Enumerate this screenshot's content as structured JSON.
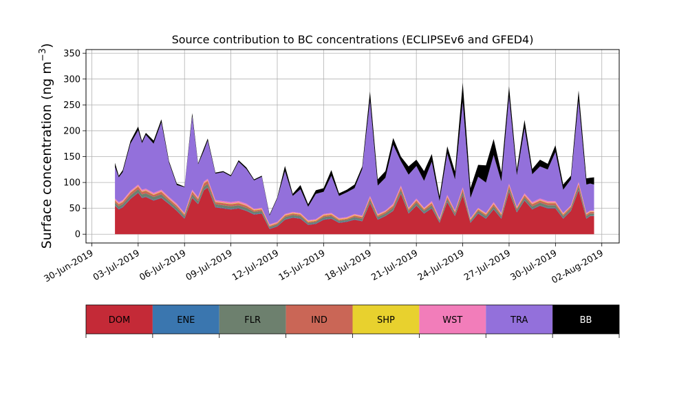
{
  "chart_data": {
    "type": "area",
    "title": "Source contribution to BC concentrations (ECLIPSEv6 and GFED4)",
    "ylabel_main": "Surface concentration (ng m",
    "ylabel_sup": "−3",
    "ylabel_close": ")",
    "xlabel": "",
    "stacked": true,
    "grid": true,
    "ylim": [
      -17,
      357
    ],
    "xlim": [
      "2019-06-29T15:00",
      "2019-08-03T03:00"
    ],
    "yticks": [
      0,
      50,
      100,
      150,
      200,
      250,
      300,
      350
    ],
    "xticks": [
      "2019-06-30",
      "2019-07-03",
      "2019-07-06",
      "2019-07-09",
      "2019-07-12",
      "2019-07-15",
      "2019-07-18",
      "2019-07-21",
      "2019-07-24",
      "2019-07-27",
      "2019-07-30",
      "2019-08-02"
    ],
    "xtick_labels": [
      "30-Jun-2019",
      "03-Jul-2019",
      "06-Jul-2019",
      "09-Jul-2019",
      "12-Jul-2019",
      "15-Jul-2019",
      "18-Jul-2019",
      "21-Jul-2019",
      "24-Jul-2019",
      "27-Jul-2019",
      "30-Jul-2019",
      "02-Aug-2019"
    ],
    "legend_position": "below",
    "x": [
      "2019-07-01T12:00",
      "2019-07-01T18:00",
      "2019-07-02T00:00",
      "2019-07-02T12:00",
      "2019-07-03T00:00",
      "2019-07-03T06:00",
      "2019-07-03T12:00",
      "2019-07-04T00:00",
      "2019-07-04T12:00",
      "2019-07-05T00:00",
      "2019-07-05T12:00",
      "2019-07-06T00:00",
      "2019-07-06T12:00",
      "2019-07-06T21:00",
      "2019-07-07T06:00",
      "2019-07-07T12:00",
      "2019-07-08T00:00",
      "2019-07-08T12:00",
      "2019-07-09T00:00",
      "2019-07-09T12:00",
      "2019-07-10T00:00",
      "2019-07-10T12:00",
      "2019-07-11T00:00",
      "2019-07-11T12:00",
      "2019-07-12T00:00",
      "2019-07-12T12:00",
      "2019-07-13T00:00",
      "2019-07-13T12:00",
      "2019-07-14T00:00",
      "2019-07-14T12:00",
      "2019-07-15T00:00",
      "2019-07-15T12:00",
      "2019-07-16T00:00",
      "2019-07-16T12:00",
      "2019-07-17T00:00",
      "2019-07-17T12:00",
      "2019-07-18T00:00",
      "2019-07-18T12:00",
      "2019-07-19T00:00",
      "2019-07-19T12:00",
      "2019-07-20T00:00",
      "2019-07-20T12:00",
      "2019-07-21T00:00",
      "2019-07-21T12:00",
      "2019-07-22T00:00",
      "2019-07-22T12:00",
      "2019-07-23T00:00",
      "2019-07-23T12:00",
      "2019-07-24T00:00",
      "2019-07-24T12:00",
      "2019-07-25T00:00",
      "2019-07-25T12:00",
      "2019-07-26T00:00",
      "2019-07-26T12:00",
      "2019-07-27T00:00",
      "2019-07-27T12:00",
      "2019-07-28T00:00",
      "2019-07-28T12:00",
      "2019-07-29T00:00",
      "2019-07-29T12:00",
      "2019-07-30T00:00",
      "2019-07-30T12:00",
      "2019-07-31T00:00",
      "2019-07-31T12:00",
      "2019-08-01T00:00",
      "2019-08-01T06:00",
      "2019-08-01T12:00"
    ],
    "series": [
      {
        "name": "DOM",
        "color": "#c42a37",
        "values": [
          55,
          48,
          52,
          68,
          80,
          70,
          72,
          65,
          70,
          58,
          45,
          30,
          70,
          58,
          85,
          90,
          52,
          50,
          48,
          50,
          45,
          38,
          40,
          10,
          15,
          28,
          32,
          30,
          18,
          20,
          28,
          30,
          22,
          24,
          28,
          25,
          60,
          28,
          35,
          45,
          78,
          40,
          55,
          40,
          50,
          22,
          62,
          35,
          75,
          22,
          40,
          30,
          48,
          30,
          82,
          42,
          65,
          48,
          55,
          50,
          50,
          30,
          45,
          85,
          30,
          35,
          35
        ]
      },
      {
        "name": "ENE",
        "color": "#3a76af",
        "values": [
          1,
          1,
          1,
          1,
          1,
          1,
          1,
          1,
          1,
          1,
          1,
          1,
          1,
          1,
          1,
          1,
          1,
          1,
          1,
          1,
          1,
          1,
          1,
          1,
          1,
          1,
          1,
          1,
          1,
          1,
          1,
          1,
          1,
          1,
          1,
          1,
          1,
          1,
          1,
          1,
          1,
          1,
          1,
          1,
          1,
          1,
          1,
          1,
          1,
          1,
          1,
          1,
          1,
          1,
          1,
          1,
          1,
          1,
          1,
          1,
          1,
          1,
          1,
          1,
          1,
          1,
          1
        ]
      },
      {
        "name": "FLR",
        "color": "#6d806e",
        "values": [
          5,
          5,
          5,
          6,
          6,
          6,
          6,
          6,
          6,
          5,
          5,
          4,
          6,
          5,
          6,
          6,
          5,
          5,
          5,
          5,
          5,
          4,
          4,
          3,
          3,
          4,
          4,
          4,
          3,
          3,
          4,
          4,
          3,
          3,
          4,
          4,
          5,
          4,
          4,
          5,
          6,
          4,
          5,
          4,
          5,
          3,
          5,
          4,
          6,
          3,
          4,
          4,
          5,
          4,
          6,
          4,
          5,
          5,
          5,
          5,
          5,
          4,
          4,
          6,
          4,
          4,
          4
        ]
      },
      {
        "name": "IND",
        "color": "#ca6656",
        "values": [
          4,
          4,
          4,
          5,
          5,
          5,
          5,
          4,
          5,
          4,
          4,
          3,
          5,
          4,
          6,
          6,
          4,
          4,
          4,
          4,
          4,
          3,
          3,
          2,
          2,
          3,
          3,
          3,
          2,
          2,
          3,
          3,
          2,
          2,
          3,
          3,
          4,
          3,
          3,
          4,
          5,
          3,
          4,
          3,
          4,
          2,
          4,
          3,
          5,
          2,
          3,
          3,
          4,
          3,
          5,
          3,
          4,
          4,
          4,
          4,
          4,
          3,
          3,
          5,
          3,
          3,
          3
        ]
      },
      {
        "name": "SHP",
        "color": "#e8d12e",
        "values": [
          1,
          1,
          1,
          1,
          1,
          1,
          1,
          1,
          1,
          1,
          1,
          1,
          1,
          1,
          1,
          1,
          1,
          1,
          1,
          1,
          1,
          1,
          1,
          1,
          1,
          1,
          1,
          1,
          1,
          1,
          1,
          1,
          1,
          1,
          1,
          1,
          1,
          1,
          1,
          1,
          1,
          1,
          1,
          1,
          1,
          1,
          1,
          1,
          1,
          1,
          1,
          1,
          1,
          1,
          1,
          1,
          1,
          1,
          1,
          1,
          1,
          1,
          1,
          1,
          1,
          1,
          1
        ]
      },
      {
        "name": "WST",
        "color": "#f27dba",
        "values": [
          3,
          3,
          3,
          3,
          3,
          3,
          3,
          3,
          3,
          3,
          3,
          2,
          3,
          3,
          3,
          3,
          3,
          3,
          3,
          3,
          3,
          2,
          2,
          2,
          2,
          2,
          2,
          2,
          2,
          2,
          2,
          2,
          2,
          2,
          2,
          2,
          3,
          2,
          2,
          3,
          3,
          2,
          3,
          2,
          3,
          2,
          3,
          2,
          3,
          2,
          2,
          2,
          3,
          2,
          3,
          2,
          3,
          3,
          3,
          3,
          3,
          2,
          2,
          3,
          2,
          2,
          2
        ]
      },
      {
        "name": "TRA",
        "color": "#9370db",
        "values": [
          61,
          48,
          54,
          91,
          105,
          90,
          104,
          95,
          130,
          66,
          36,
          50,
          142,
          63,
          59,
          74,
          51,
          56,
          50,
          76,
          67,
          55,
          60,
          17,
          45,
          83,
          31,
          46,
          26,
          49,
          43,
          72,
          43,
          48,
          50,
          90,
          184,
          55,
          63,
          114,
          47,
          64,
          63,
          52,
          76,
          33,
          80,
          60,
          165,
          39,
          60,
          59,
          91,
          61,
          168,
          61,
          126,
          54,
          62,
          61,
          95,
          45,
          50,
          157,
          55,
          52,
          50
        ]
      },
      {
        "name": "BB",
        "color": "#000000",
        "values": [
          8,
          3,
          4,
          5,
          7,
          4,
          4,
          6,
          6,
          3,
          3,
          1,
          6,
          2,
          5,
          4,
          2,
          2,
          2,
          3,
          3,
          2,
          2,
          2,
          2,
          10,
          4,
          8,
          5,
          7,
          7,
          11,
          5,
          5,
          7,
          5,
          18,
          12,
          13,
          13,
          9,
          16,
          12,
          19,
          15,
          9,
          14,
          15,
          37,
          19,
          23,
          33,
          31,
          17,
          20,
          11,
          16,
          10,
          13,
          11,
          13,
          10,
          7,
          20,
          12,
          11,
          14
        ]
      }
    ]
  }
}
